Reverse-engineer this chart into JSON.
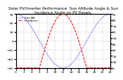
{
  "title": "Solar PV/Inverter Performance  Sun Altitude Angle & Sun Incidence Angle on PV Panels",
  "x_start": 0,
  "x_end": 24,
  "x_ticks": [
    0,
    2,
    4,
    6,
    8,
    10,
    12,
    14,
    16,
    18,
    20,
    22,
    24
  ],
  "y_left_min": -90,
  "y_left_max": 90,
  "y_right_min": 0,
  "y_right_max": 90,
  "right_yticks": [
    0,
    10,
    20,
    30,
    40,
    50,
    60,
    70,
    80,
    90
  ],
  "left_yticks": [
    -90,
    -60,
    -30,
    0,
    30,
    60,
    90
  ],
  "blue_color": "#0000ff",
  "red_color": "#ff0000",
  "grid_color": "#808080",
  "bg_color": "#ffffff",
  "title_fontsize": 4.0,
  "tick_fontsize": 3.2,
  "line_width": 0.7,
  "legend_fontsize": 3.0
}
